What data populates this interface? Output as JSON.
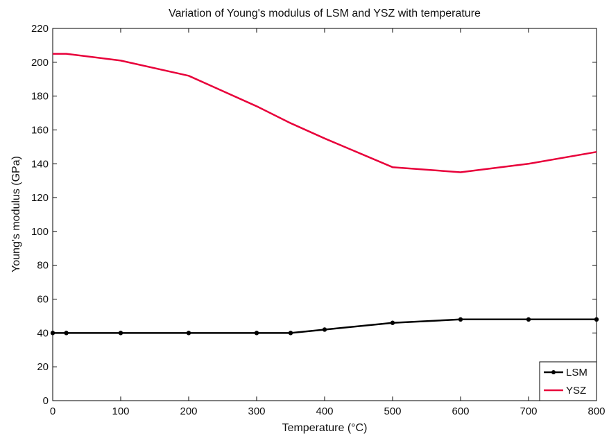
{
  "chart_data": {
    "type": "line",
    "title": "Variation of Young's modulus of LSM and YSZ with temperature",
    "xlabel": "Temperature (°C)",
    "ylabel": "Young's modulus (GPa)",
    "xlim": [
      0,
      800
    ],
    "ylim": [
      0,
      220
    ],
    "xticks": [
      0,
      100,
      200,
      300,
      400,
      500,
      600,
      700,
      800
    ],
    "yticks": [
      0,
      20,
      40,
      60,
      80,
      100,
      120,
      140,
      160,
      180,
      200,
      220
    ],
    "grid": false,
    "legend_position": "bottom-right",
    "series": [
      {
        "name": "LSM",
        "color": "#000000",
        "markers": true,
        "x": [
          0,
          20,
          100,
          200,
          300,
          350,
          400,
          500,
          600,
          700,
          800
        ],
        "y": [
          40,
          40,
          40,
          40,
          40,
          40,
          42,
          46,
          48,
          48,
          48
        ]
      },
      {
        "name": "YSZ",
        "color": "#e8003a",
        "markers": false,
        "x": [
          0,
          20,
          100,
          200,
          300,
          350,
          400,
          500,
          600,
          700,
          800
        ],
        "y": [
          205,
          205,
          201,
          192,
          174,
          164,
          155,
          138,
          135,
          140,
          147
        ]
      }
    ]
  }
}
